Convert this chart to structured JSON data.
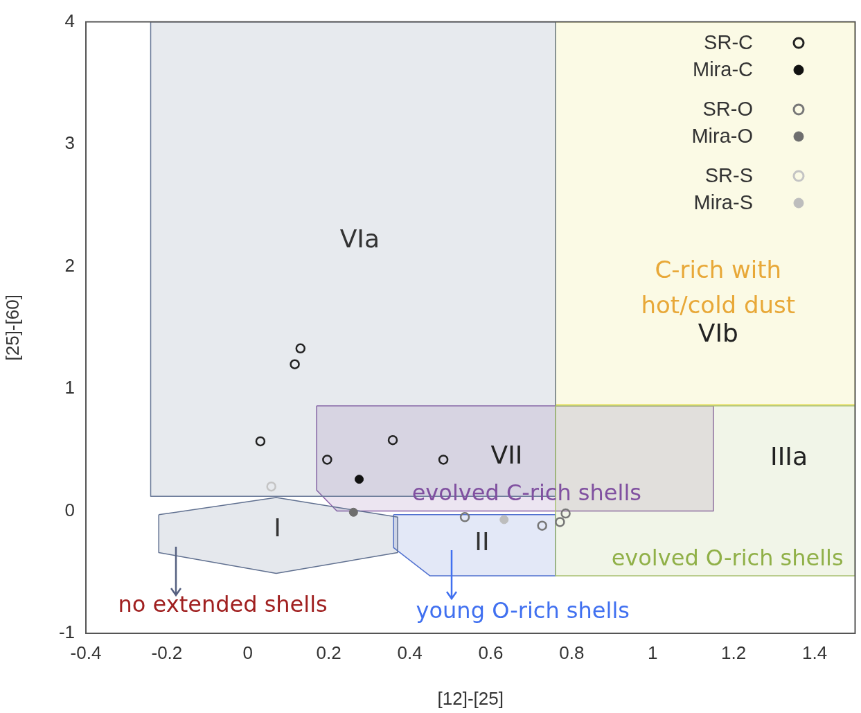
{
  "chart_data": {
    "type": "scatter",
    "xlabel": "[12]-[25]",
    "ylabel": "[25]-[60]",
    "xlim": [
      -0.4,
      1.5
    ],
    "xticks": [
      -0.4,
      -0.2,
      0,
      0.2,
      0.4,
      0.6,
      0.8,
      1,
      1.2,
      1.4
    ],
    "ylim": [
      -1,
      4
    ],
    "yticks": [
      -1,
      0,
      1,
      2,
      3,
      4
    ],
    "grid": false,
    "legend": "top right",
    "series": [
      {
        "type": "area",
        "marker": "none",
        "color": "#a8c070",
        "x": [
          0.76,
          1.5,
          1.5,
          0.76,
          0.76
        ],
        "values": [
          0.86,
          0.86,
          -0.53,
          -0.53,
          0.86
        ]
      },
      {
        "type": "area",
        "marker": "none",
        "color": "#6a7a98",
        "x": [
          -0.24,
          0.76,
          0.76,
          -0.24,
          -0.24
        ],
        "values": [
          4,
          4,
          0.12,
          0.12,
          4
        ]
      },
      {
        "type": "area",
        "marker": "none",
        "color": "#e8e060",
        "x": [
          0.76,
          1.5,
          1.5,
          0.76,
          0.76
        ],
        "values": [
          4,
          4,
          0.87,
          0.87,
          4
        ]
      },
      {
        "type": "area",
        "marker": "none",
        "color": "#607090",
        "x": [
          -0.22,
          0.07,
          0.37,
          0.37,
          0.07,
          -0.22,
          -0.22
        ],
        "values": [
          -0.03,
          0.11,
          -0.05,
          -0.34,
          -0.51,
          -0.34,
          -0.03
        ]
      },
      {
        "type": "area",
        "marker": "none",
        "color": "#5070d0",
        "x": [
          0.36,
          0.76,
          0.76,
          0.45,
          0.36,
          0.36
        ],
        "values": [
          -0.03,
          -0.03,
          -0.53,
          -0.53,
          -0.3,
          -0.03
        ]
      },
      {
        "type": "area",
        "marker": "none",
        "color": "#8a60a8",
        "x": [
          0.17,
          1.15,
          1.15,
          0.22,
          0.17,
          0.17
        ],
        "values": [
          0.86,
          0.86,
          0,
          0,
          0.17,
          0.86
        ]
      },
      {
        "name": "SR-C",
        "color": "#222222",
        "marker": "circle",
        "x": [
          0.116,
          0.13,
          0.031,
          0.358,
          0.196,
          0.483
        ],
        "values": [
          1.2,
          1.33,
          0.57,
          0.58,
          0.42,
          0.42
        ]
      },
      {
        "name": "Mira-C",
        "color": "#111111",
        "marker": "circle",
        "x": [
          0.275
        ],
        "values": [
          0.26
        ]
      },
      {
        "name": "SR-O",
        "color": "#777777",
        "marker": "circle",
        "x": [
          0.536,
          0.727,
          0.771,
          0.785
        ],
        "values": [
          -0.05,
          -0.12,
          -0.09,
          -0.02
        ]
      },
      {
        "name": "Mira-O",
        "color": "#6e6e6e",
        "marker": "circle",
        "x": [
          0.261
        ],
        "values": [
          -0.01
        ]
      },
      {
        "name": "SR-S",
        "color": "#c4c4c4",
        "marker": "circle",
        "x": [
          0.058
        ],
        "values": [
          0.2
        ]
      },
      {
        "name": "Mira-S",
        "color": "#bdbdbd",
        "marker": "circle",
        "x": [
          0.633
        ],
        "values": [
          -0.07
        ]
      }
    ],
    "annotations": [
      "VIa",
      "C-rich with\nhot/cold dust",
      "VIb",
      "VII",
      "IIIa",
      "I",
      "II",
      "evolved C-rich shells",
      "evolved O-rich shells",
      "no extended shells",
      "young O-rich shells"
    ]
  }
}
